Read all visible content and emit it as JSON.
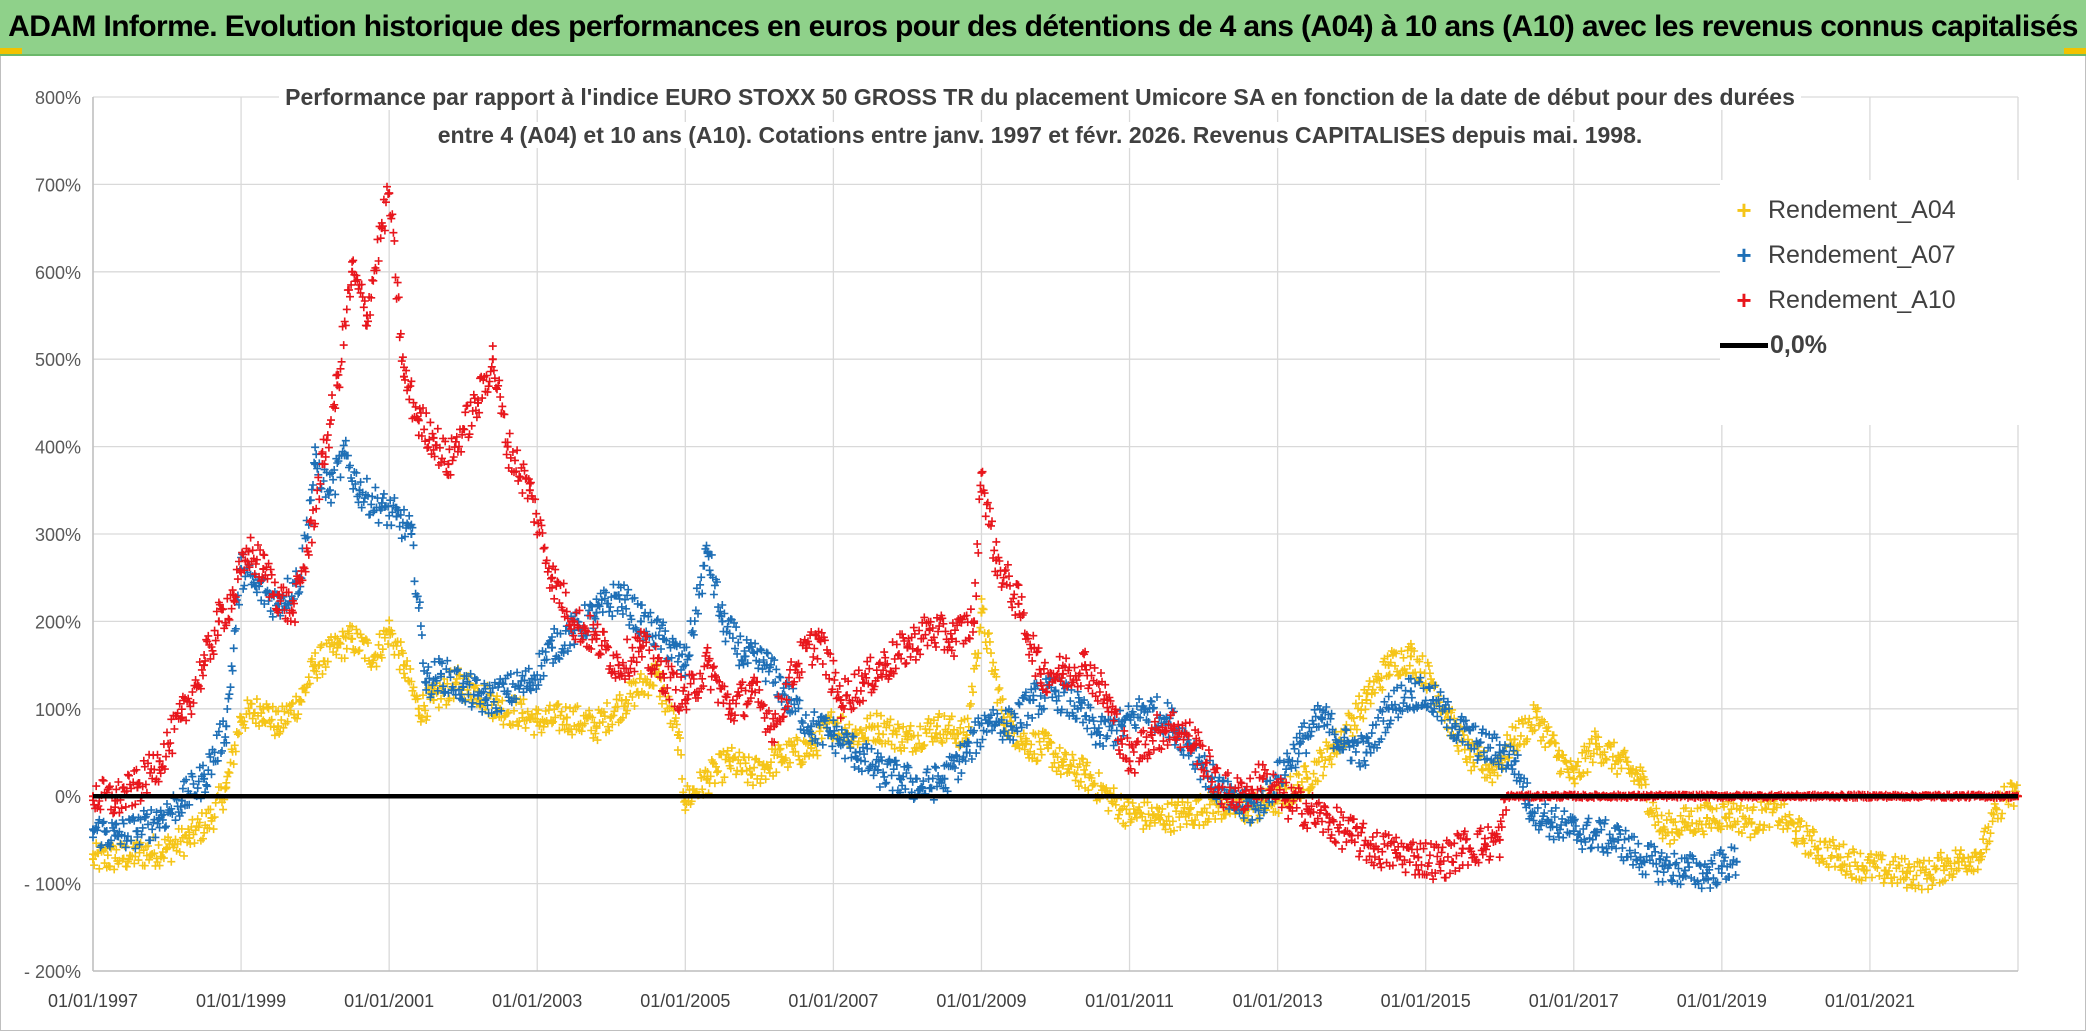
{
  "banner": {
    "title": "ADAM Informe. Evolution historique des performances en euros pour des détentions de 4 ans (A04) à 10 ans (A10) avec les revenus connus capitalisés"
  },
  "chart_data": {
    "type": "scatter",
    "title": "Performance par rapport à l'indice EURO STOXX 50 GROSS TR  du placement Umicore SA en fonction de la date de début pour des durées entre 4 (A04) et 10 ans (A10). Cotations entre janv. 1997 et févr. 2026. Revenus CAPITALISES depuis mai. 1998.",
    "title_lines": [
      "Performance par rapport à l'indice EURO STOXX 50 GROSS TR  du placement Umicore SA en fonction de la date de début pour des durées",
      "entre 4 (A04) et 10 ans (A10). Cotations entre janv. 1997 et févr. 2026. Revenus CAPITALISES depuis mai. 1998."
    ],
    "xlabel": "",
    "ylabel": "",
    "xlim": [
      1997.0,
      2023.0
    ],
    "ylim": [
      -200,
      800
    ],
    "x_ticks": [
      {
        "x": 1997,
        "label": "01/01/1997"
      },
      {
        "x": 1999,
        "label": "01/01/1999"
      },
      {
        "x": 2001,
        "label": "01/01/2001"
      },
      {
        "x": 2003,
        "label": "01/01/2003"
      },
      {
        "x": 2005,
        "label": "01/01/2005"
      },
      {
        "x": 2007,
        "label": "01/01/2007"
      },
      {
        "x": 2009,
        "label": "01/01/2009"
      },
      {
        "x": 2011,
        "label": "01/01/2011"
      },
      {
        "x": 2013,
        "label": "01/01/2013"
      },
      {
        "x": 2015,
        "label": "01/01/2015"
      },
      {
        "x": 2017,
        "label": "01/01/2017"
      },
      {
        "x": 2019,
        "label": "01/01/2019"
      },
      {
        "x": 2021,
        "label": "01/01/2021"
      }
    ],
    "y_ticks": [
      {
        "y": 800,
        "label": "800%"
      },
      {
        "y": 700,
        "label": "700%"
      },
      {
        "y": 600,
        "label": "600%"
      },
      {
        "y": 500,
        "label": "500%"
      },
      {
        "y": 400,
        "label": "400%"
      },
      {
        "y": 300,
        "label": "300%"
      },
      {
        "y": 200,
        "label": "200%"
      },
      {
        "y": 100,
        "label": "100%"
      },
      {
        "y": 0,
        "label": "0%"
      },
      {
        "y": -100,
        "label": "- 100%"
      },
      {
        "y": -200,
        "label": "- 200%"
      }
    ],
    "legend_position": "top-right",
    "series": [
      {
        "name": "Rendement_A04",
        "color": "#f5c518",
        "marker": "+",
        "x": [
          1997.0,
          1997.5,
          1998.0,
          1998.3,
          1998.6,
          1998.8,
          1999.0,
          1999.3,
          1999.5,
          1999.8,
          2000.0,
          2000.3,
          2000.5,
          2000.8,
          2001.0,
          2001.2,
          2001.4,
          2001.6,
          2001.9,
          2002.2,
          2002.5,
          2002.8,
          2003.0,
          2003.4,
          2003.8,
          2004.2,
          2004.6,
          2004.9,
          2005.0,
          2005.3,
          2005.6,
          2005.9,
          2006.3,
          2006.7,
          2007.0,
          2007.3,
          2007.6,
          2008.0,
          2008.4,
          2008.8,
          2009.0,
          2009.3,
          2009.6,
          2009.9,
          2010.1,
          2010.4,
          2010.7,
          2011.0,
          2011.4,
          2011.8,
          2012.2,
          2012.6,
          2013.0,
          2013.4,
          2013.8,
          2014.2,
          2014.5,
          2014.8,
          2015.1,
          2015.3,
          2015.6,
          2015.9,
          2016.2,
          2016.5,
          2016.8,
          2017.0,
          2017.3,
          2017.6,
          2017.9,
          2018.2,
          2018.5,
          2018.8,
          2019.1,
          2019.4,
          2019.7,
          2020.0,
          2020.3,
          2020.6,
          2020.9,
          2021.2,
          2021.5,
          2021.8,
          2022.0,
          2022.2,
          2022.5,
          2022.8,
          2023.0
        ],
        "y": [
          -72,
          -68,
          -60,
          -48,
          -25,
          10,
          90,
          100,
          80,
          110,
          150,
          170,
          180,
          160,
          190,
          150,
          100,
          110,
          130,
          120,
          100,
          95,
          85,
          90,
          80,
          110,
          140,
          70,
          -5,
          20,
          40,
          25,
          45,
          55,
          85,
          70,
          80,
          65,
          80,
          70,
          210,
          90,
          60,
          55,
          35,
          25,
          0,
          -20,
          -25,
          -20,
          -10,
          -15,
          -5,
          20,
          60,
          110,
          150,
          160,
          130,
          90,
          45,
          30,
          65,
          90,
          45,
          20,
          60,
          40,
          20,
          -40,
          -30,
          -25,
          -20,
          -30,
          -15,
          -40,
          -60,
          -70,
          -80,
          -85,
          -88,
          -90,
          -80,
          -75,
          -65,
          -2,
          0
        ],
        "spread": 18
      },
      {
        "name": "Rendement_A07",
        "color": "#1e6fb6",
        "marker": "+",
        "x": [
          1997.0,
          1997.3,
          1997.6,
          1997.9,
          1998.2,
          1998.5,
          1998.8,
          1999.0,
          1999.2,
          1999.5,
          1999.8,
          2000.0,
          2000.2,
          2000.4,
          2000.6,
          2000.9,
          2001.1,
          2001.3,
          2001.5,
          2001.7,
          2002.0,
          2002.3,
          2002.6,
          2002.9,
          2003.2,
          2003.5,
          2003.8,
          2004.1,
          2004.4,
          2004.7,
          2005.0,
          2005.3,
          2005.5,
          2005.8,
          2006.1,
          2006.4,
          2006.7,
          2007.0,
          2007.3,
          2007.6,
          2007.9,
          2008.2,
          2008.5,
          2008.8,
          2009.1,
          2009.4,
          2009.7,
          2010.0,
          2010.3,
          2010.6,
          2010.9,
          2011.2,
          2011.5,
          2011.8,
          2012.1,
          2012.4,
          2012.7,
          2013.0,
          2013.3,
          2013.6,
          2013.9,
          2014.2,
          2014.5,
          2014.8,
          2015.1,
          2015.4,
          2015.7,
          2016.0,
          2016.2,
          2016.4,
          2016.7,
          2017.0,
          2017.3,
          2017.6,
          2017.9,
          2018.2,
          2018.5,
          2018.8,
          2019.0,
          2019.2
        ],
        "y": [
          -38,
          -45,
          -40,
          -25,
          -5,
          20,
          80,
          260,
          240,
          220,
          250,
          380,
          350,
          390,
          350,
          330,
          320,
          300,
          130,
          140,
          125,
          110,
          120,
          130,
          170,
          190,
          210,
          230,
          200,
          180,
          150,
          280,
          200,
          160,
          150,
          110,
          80,
          70,
          50,
          30,
          20,
          10,
          20,
          50,
          90,
          80,
          110,
          120,
          100,
          70,
          80,
          100,
          90,
          60,
          20,
          -10,
          -15,
          20,
          60,
          90,
          60,
          50,
          100,
          120,
          110,
          80,
          60,
          50,
          40,
          -10,
          -30,
          -40,
          -45,
          -50,
          -70,
          -80,
          -85,
          -88,
          -80,
          -75
        ],
        "spread": 20
      },
      {
        "name": "Rendement_A10",
        "color": "#e8161c",
        "marker": "+",
        "x": [
          1997.0,
          1997.3,
          1997.6,
          1997.9,
          1998.2,
          1998.5,
          1998.7,
          1998.9,
          1999.1,
          1999.3,
          1999.5,
          1999.7,
          1999.9,
          2000.1,
          2000.3,
          2000.5,
          2000.7,
          2000.9,
          2001.0,
          2001.2,
          2001.4,
          2001.6,
          2001.8,
          2002.0,
          2002.2,
          2002.4,
          2002.6,
          2002.9,
          2003.2,
          2003.5,
          2003.8,
          2004.1,
          2004.4,
          2004.7,
          2005.0,
          2005.3,
          2005.6,
          2005.9,
          2006.2,
          2006.5,
          2006.8,
          2007.1,
          2007.4,
          2007.7,
          2008.0,
          2008.3,
          2008.6,
          2008.9,
          2009.0,
          2009.2,
          2009.5,
          2009.8,
          2010.1,
          2010.4,
          2010.7,
          2011.0,
          2011.3,
          2011.6,
          2011.9,
          2012.2,
          2012.5,
          2012.8,
          2013.1,
          2013.4,
          2013.7,
          2014.0,
          2014.3,
          2014.6,
          2014.9,
          2015.2,
          2015.5,
          2015.8,
          2016.0,
          2016.1,
          2016.5,
          2017.0,
          2017.5,
          2018.0,
          2018.5,
          2019.0,
          2019.5,
          2020.0,
          2020.5,
          2021.0,
          2021.5,
          2022.0,
          2022.5,
          2023.0
        ],
        "y": [
          0,
          -5,
          10,
          40,
          90,
          150,
          200,
          230,
          280,
          260,
          230,
          210,
          280,
          380,
          470,
          600,
          550,
          650,
          690,
          480,
          430,
          410,
          380,
          420,
          450,
          500,
          400,
          350,
          250,
          200,
          180,
          150,
          170,
          140,
          110,
          150,
          100,
          120,
          80,
          150,
          180,
          110,
          130,
          150,
          170,
          190,
          180,
          200,
          370,
          270,
          220,
          140,
          140,
          150,
          110,
          40,
          70,
          80,
          60,
          10,
          0,
          20,
          -5,
          -15,
          -30,
          -45,
          -60,
          -65,
          -70,
          -75,
          -60,
          -55,
          -50,
          0,
          0,
          0,
          0,
          0,
          0,
          0,
          0,
          0,
          0,
          0,
          0,
          0,
          0,
          0
        ],
        "spread": 22
      },
      {
        "name": "0,0%",
        "color": "#000000",
        "marker": "line",
        "x": [
          1997.0,
          2023.0
        ],
        "y": [
          0,
          0
        ]
      }
    ]
  },
  "legend": {
    "items": [
      {
        "label": "Rendement_A04",
        "color": "#f5c518",
        "marker": "+"
      },
      {
        "label": "Rendement_A07",
        "color": "#1e6fb6",
        "marker": "+"
      },
      {
        "label": "Rendement_A10",
        "color": "#e8161c",
        "marker": "+"
      },
      {
        "label": "0,0%",
        "color": "#000000",
        "marker": "line"
      }
    ]
  }
}
